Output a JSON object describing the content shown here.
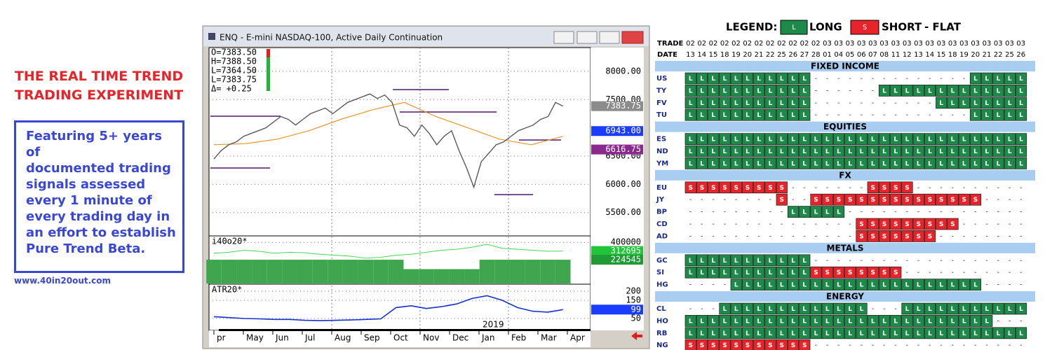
{
  "left": {
    "title": [
      "THE REAL TIME TREND",
      "TRADING EXPERIMENT"
    ],
    "description": [
      "Featuring 5+ years of",
      "documented trading",
      "signals assessed",
      "every 1 minute of",
      "every trading day in",
      "an effort to establish",
      "Pure Trend Beta."
    ],
    "url": "www.40in20out.com"
  },
  "window": {
    "title": "ENQ - E-mini NASDAQ-100, Active Daily Continuation",
    "readout": [
      "O=7383.50",
      "H=7388.50",
      "L=7364.50",
      "L=7383.75",
      "Δ=  +0.25"
    ],
    "months": [
      "pr",
      "May",
      "Jun",
      "Jul",
      "Aug",
      "Sep",
      "Oct",
      "Nov",
      "Dec",
      "Jan",
      "Feb",
      "Mar",
      "Apr"
    ],
    "year_label": "2019",
    "price": {
      "ylim": [
        5100,
        8420
      ],
      "yticks": [
        {
          "value": 8000,
          "label": "8000.00"
        },
        {
          "value": 7500,
          "label": "7500.00"
        },
        {
          "value": 6500,
          "label": "6500.00"
        },
        {
          "value": 6000,
          "label": "6000.00"
        },
        {
          "value": 5500,
          "label": "5500.00"
        }
      ],
      "closes": [
        6450,
        6600,
        6700,
        6750,
        6850,
        6900,
        6950,
        7000,
        7100,
        7200,
        7150,
        7050,
        7150,
        7250,
        7300,
        7350,
        7250,
        7350,
        7450,
        7500,
        7550,
        7600,
        7520,
        7580,
        7450,
        7050,
        7000,
        6850,
        7050,
        6900,
        6700,
        6850,
        6950,
        6600,
        6300,
        5950,
        6400,
        6550,
        6700,
        6750,
        6850,
        6950,
        7000,
        7050,
        7150,
        7200,
        7450,
        7383.75
      ],
      "average": [
        6700,
        6720,
        6800,
        6950,
        7150,
        7320,
        7450,
        7200,
        7000,
        6800,
        6700,
        6850
      ],
      "markers": [
        {
          "value": 7383.75,
          "label": "7383.75",
          "color": "#8c8c8c"
        },
        {
          "value": 6943,
          "label": "6943.00",
          "color": "#1a3cff"
        },
        {
          "value": 6616.75,
          "label": "6616.75",
          "color": "#8a2a8f"
        }
      ]
    },
    "indicator": {
      "name": "i40o20*",
      "ylim": [
        -15000,
        458000
      ],
      "yticks": [
        400000
      ],
      "line": [
        290000,
        300000,
        320000,
        310000,
        290000,
        300000,
        295000,
        280000,
        270000,
        260000,
        240000,
        250000,
        270000,
        280000,
        300000,
        320000,
        330000,
        350000,
        380000,
        340000,
        330000,
        320000,
        310000,
        312695
      ],
      "bars": [
        224545,
        224545,
        224545,
        224545,
        224545,
        224545,
        224545,
        224545,
        224545,
        224545,
        224545,
        224545,
        224545,
        130000,
        130000,
        130000,
        130000,
        130000,
        224545,
        224545,
        224545,
        224545,
        224545,
        224545
      ],
      "markers": [
        {
          "value": 312695,
          "label": "312695",
          "color": "#22c43a"
        },
        {
          "value": 224545,
          "label": "224545",
          "color": "#1f9a35"
        }
      ]
    },
    "atr": {
      "name": "ATR20*",
      "ylim": [
        0,
        231
      ],
      "yticks": [
        200,
        150,
        50
      ],
      "line": [
        60,
        55,
        50,
        48,
        45,
        45,
        40,
        38,
        40,
        42,
        45,
        48,
        110,
        120,
        105,
        115,
        130,
        160,
        175,
        150,
        110,
        90,
        85,
        99
      ],
      "markers": [
        {
          "value": 99,
          "label": "99",
          "color": "#1a3cff"
        }
      ]
    }
  },
  "grid": {
    "legend": {
      "title": "LEGEND:",
      "long_symbol": "L",
      "long": "LONG",
      "short_symbol": "S",
      "short": "SHORT",
      "flat": "- FLAT"
    },
    "trade_label": "TRADE",
    "date_label": "DATE",
    "trade": [
      "02",
      "02",
      "02",
      "02",
      "02",
      "02",
      "02",
      "02",
      "02",
      "02",
      "02",
      "02",
      "03",
      "03",
      "03",
      "03",
      "03",
      "03",
      "03",
      "03",
      "03",
      "03",
      "03",
      "03",
      "03",
      "03",
      "03",
      "03",
      "03",
      "03"
    ],
    "date": [
      "13",
      "14",
      "15",
      "18",
      "19",
      "20",
      "21",
      "22",
      "25",
      "26",
      "27",
      "28",
      "01",
      "04",
      "05",
      "06",
      "07",
      "08",
      "11",
      "12",
      "13",
      "14",
      "15",
      "18",
      "19",
      "20",
      "21",
      "22",
      "25",
      "26"
    ],
    "sections": [
      {
        "name": "FIXED INCOME",
        "rows": [
          {
            "symbol": "US",
            "cells": "LLLLLLLLLLL--------------LLLLL"
          },
          {
            "symbol": "TY",
            "cells": "LLLLLLLLLLL------LLLLLLLLLLLLL"
          },
          {
            "symbol": "FV",
            "cells": "LLLLLLLLLLL-----------LLLLLLLL"
          },
          {
            "symbol": "TU",
            "cells": "LLLLLLLLLLL--------------LLLLL"
          }
        ]
      },
      {
        "name": "EQUITIES",
        "rows": [
          {
            "symbol": "ES",
            "cells": "LLLLLLLLLLLLLLLLLLLLLLLLLLLLLL"
          },
          {
            "symbol": "ND",
            "cells": "LLLLLLLLLLLLLLLLLLLLLLLLLLLLLL"
          },
          {
            "symbol": "YM",
            "cells": "LLLLLLLLLLLLLLLLLLLLLLLLLLLLLL"
          }
        ]
      },
      {
        "name": "FX",
        "rows": [
          {
            "symbol": "EU",
            "cells": "SSSSSSSSS-------SSSS----------"
          },
          {
            "symbol": "JY",
            "cells": "--------S--SSSSSSSSSSSSSSS----"
          },
          {
            "symbol": "BP",
            "cells": "---------LLLLL----------------"
          },
          {
            "symbol": "CD",
            "cells": "---------------SSSSSSSSS------"
          },
          {
            "symbol": "AD",
            "cells": "---------------SSSSSSS--------"
          }
        ]
      },
      {
        "name": "METALS",
        "rows": [
          {
            "symbol": "GC",
            "cells": "LLLLLLLLLLL-------------------"
          },
          {
            "symbol": "SI",
            "cells": "LLLLLLLLLLLSSSSSSSS-----------"
          },
          {
            "symbol": "HG",
            "cells": "----LLLLLLLLLLLLLLLLLLLLLL----"
          }
        ]
      },
      {
        "name": "ENERGY",
        "rows": [
          {
            "symbol": "CL",
            "cells": "---LLLLLLLLLLLLL---LLLLLLLLLLL"
          },
          {
            "symbol": "HO",
            "cells": "LLLLLLLLLLLLLLLLLLLLLLLLLLL---"
          },
          {
            "symbol": "RB",
            "cells": "LLLLLLLLLLLLLLLLLLLLLLLLLLLLLL"
          },
          {
            "symbol": "NG",
            "cells": "SSSSSSSSSSS-------------------"
          }
        ]
      }
    ]
  }
}
